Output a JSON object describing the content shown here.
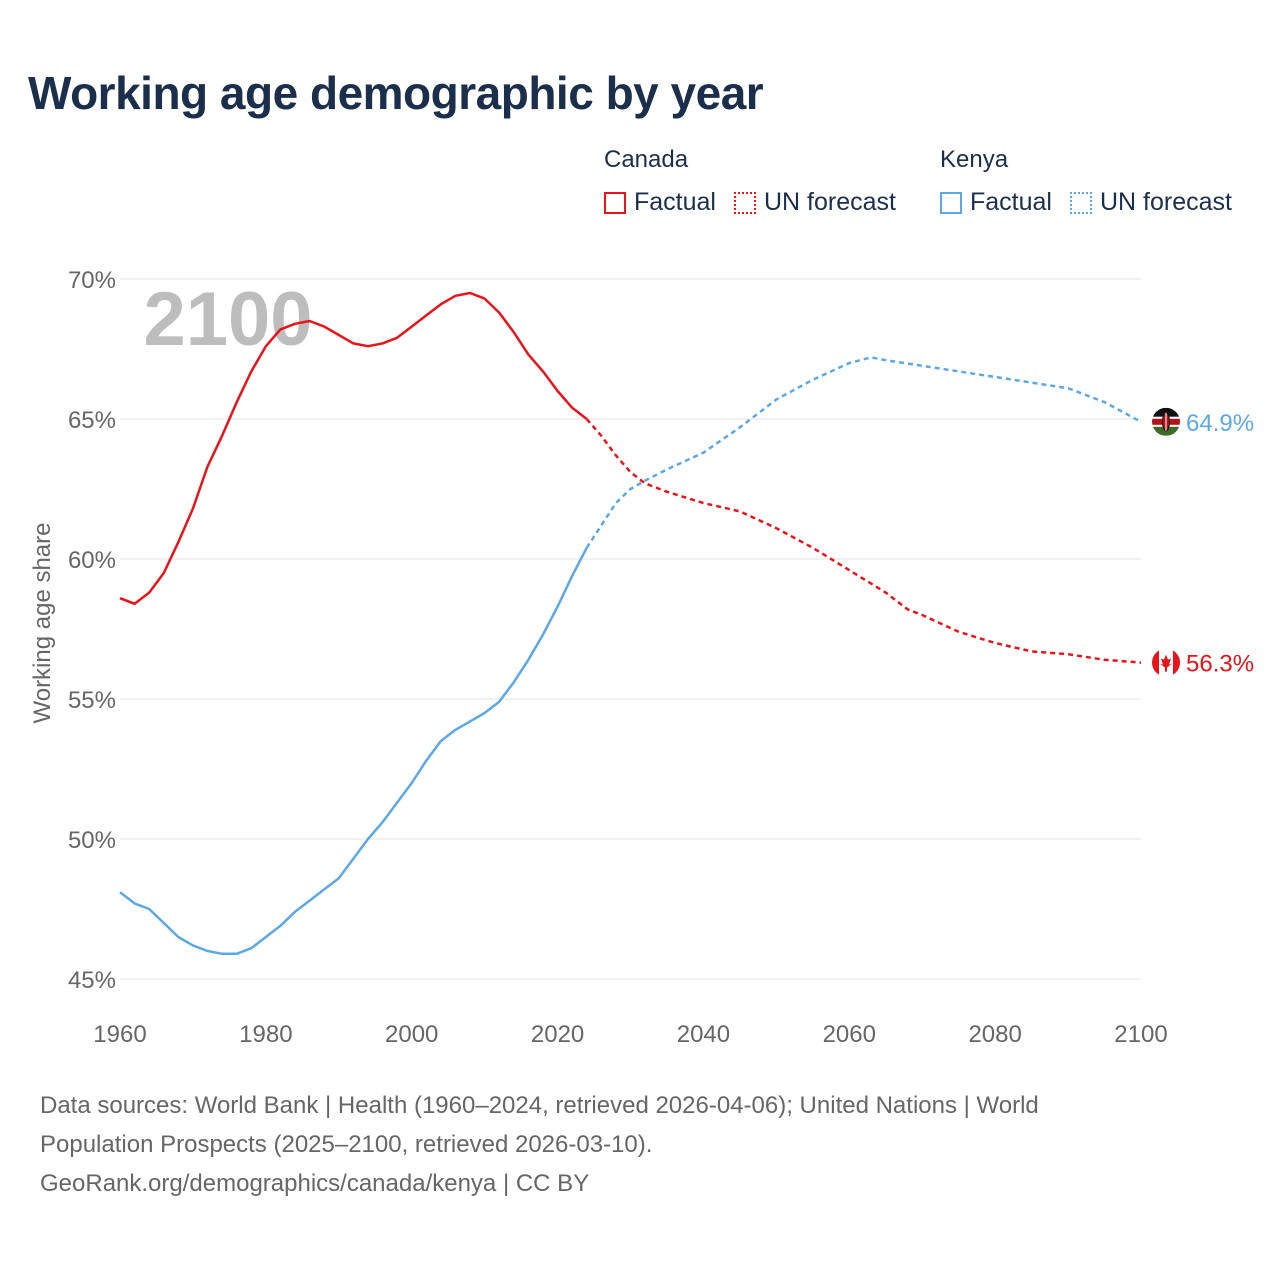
{
  "title": "Working age demographic by year",
  "legend": [
    {
      "country": "Canada",
      "color": "#e8141a",
      "items": [
        {
          "label": "Factual",
          "style": "solid"
        },
        {
          "label": "UN forecast",
          "style": "dotted"
        }
      ]
    },
    {
      "country": "Kenya",
      "color": "#5da8e4",
      "items": [
        {
          "label": "Factual",
          "style": "solid"
        },
        {
          "label": "UN forecast",
          "style": "dotted"
        }
      ]
    }
  ],
  "footer": {
    "line1": "Data sources: World Bank | Health (1960–2024, retrieved 2026-04-06); United Nations | World",
    "line2": "Population Prospects (2025–2100, retrieved 2026-03-10).",
    "line3": "GeoRank.org/demographics/canada/kenya | CC BY"
  },
  "chart_data": {
    "type": "line",
    "title": "Working age demographic by year",
    "ylabel": "Working age share",
    "xlabel": "",
    "year_watermark": "2100",
    "xlim": [
      1960,
      2100
    ],
    "ylim": [
      45,
      70
    ],
    "x_ticks": [
      1960,
      1980,
      2000,
      2020,
      2040,
      2060,
      2080,
      2100
    ],
    "y_ticks": [
      {
        "value": 45,
        "label": "45%"
      },
      {
        "value": 50,
        "label": "50%"
      },
      {
        "value": 55,
        "label": "55%"
      },
      {
        "value": 60,
        "label": "60%"
      },
      {
        "value": 65,
        "label": "65%"
      },
      {
        "value": 70,
        "label": "70%"
      }
    ],
    "factual_end_year": 2024,
    "series": [
      {
        "name": "Canada",
        "color": "#e8141a",
        "end_label": "56.3%",
        "flag": "canada-flag",
        "points": [
          [
            1960,
            58.6
          ],
          [
            1962,
            58.4
          ],
          [
            1964,
            58.8
          ],
          [
            1966,
            59.5
          ],
          [
            1968,
            60.6
          ],
          [
            1970,
            61.8
          ],
          [
            1972,
            63.3
          ],
          [
            1974,
            64.4
          ],
          [
            1976,
            65.6
          ],
          [
            1978,
            66.7
          ],
          [
            1980,
            67.6
          ],
          [
            1982,
            68.2
          ],
          [
            1984,
            68.4
          ],
          [
            1986,
            68.5
          ],
          [
            1988,
            68.3
          ],
          [
            1990,
            68.0
          ],
          [
            1992,
            67.7
          ],
          [
            1994,
            67.6
          ],
          [
            1996,
            67.7
          ],
          [
            1998,
            67.9
          ],
          [
            2000,
            68.3
          ],
          [
            2002,
            68.7
          ],
          [
            2004,
            69.1
          ],
          [
            2006,
            69.4
          ],
          [
            2008,
            69.5
          ],
          [
            2010,
            69.3
          ],
          [
            2012,
            68.8
          ],
          [
            2014,
            68.1
          ],
          [
            2016,
            67.3
          ],
          [
            2018,
            66.7
          ],
          [
            2020,
            66.0
          ],
          [
            2022,
            65.4
          ],
          [
            2024,
            65.0
          ],
          [
            2026,
            64.4
          ],
          [
            2028,
            63.7
          ],
          [
            2030,
            63.1
          ],
          [
            2032,
            62.7
          ],
          [
            2035,
            62.4
          ],
          [
            2040,
            62.0
          ],
          [
            2045,
            61.7
          ],
          [
            2050,
            61.1
          ],
          [
            2055,
            60.4
          ],
          [
            2060,
            59.6
          ],
          [
            2065,
            58.8
          ],
          [
            2068,
            58.2
          ],
          [
            2070,
            58.0
          ],
          [
            2075,
            57.4
          ],
          [
            2080,
            57.0
          ],
          [
            2085,
            56.7
          ],
          [
            2090,
            56.6
          ],
          [
            2095,
            56.4
          ],
          [
            2100,
            56.3
          ]
        ]
      },
      {
        "name": "Kenya",
        "color": "#5da8e4",
        "end_label": "64.9%",
        "flag": "kenya-flag",
        "points": [
          [
            1960,
            48.1
          ],
          [
            1962,
            47.7
          ],
          [
            1964,
            47.5
          ],
          [
            1966,
            47.0
          ],
          [
            1968,
            46.5
          ],
          [
            1970,
            46.2
          ],
          [
            1972,
            46.0
          ],
          [
            1974,
            45.9
          ],
          [
            1976,
            45.9
          ],
          [
            1978,
            46.1
          ],
          [
            1980,
            46.5
          ],
          [
            1982,
            46.9
          ],
          [
            1984,
            47.4
          ],
          [
            1986,
            47.8
          ],
          [
            1988,
            48.2
          ],
          [
            1990,
            48.6
          ],
          [
            1992,
            49.3
          ],
          [
            1994,
            50.0
          ],
          [
            1996,
            50.6
          ],
          [
            1998,
            51.3
          ],
          [
            2000,
            52.0
          ],
          [
            2002,
            52.8
          ],
          [
            2004,
            53.5
          ],
          [
            2006,
            53.9
          ],
          [
            2008,
            54.2
          ],
          [
            2010,
            54.5
          ],
          [
            2012,
            54.9
          ],
          [
            2014,
            55.6
          ],
          [
            2016,
            56.4
          ],
          [
            2018,
            57.3
          ],
          [
            2020,
            58.3
          ],
          [
            2022,
            59.4
          ],
          [
            2024,
            60.4
          ],
          [
            2026,
            61.2
          ],
          [
            2028,
            62.0
          ],
          [
            2030,
            62.5
          ],
          [
            2032,
            62.8
          ],
          [
            2035,
            63.2
          ],
          [
            2040,
            63.8
          ],
          [
            2045,
            64.7
          ],
          [
            2050,
            65.7
          ],
          [
            2055,
            66.4
          ],
          [
            2060,
            67.0
          ],
          [
            2063,
            67.2
          ],
          [
            2065,
            67.1
          ],
          [
            2070,
            66.9
          ],
          [
            2075,
            66.7
          ],
          [
            2080,
            66.5
          ],
          [
            2085,
            66.3
          ],
          [
            2090,
            66.1
          ],
          [
            2095,
            65.6
          ],
          [
            2100,
            64.9
          ]
        ]
      }
    ]
  }
}
